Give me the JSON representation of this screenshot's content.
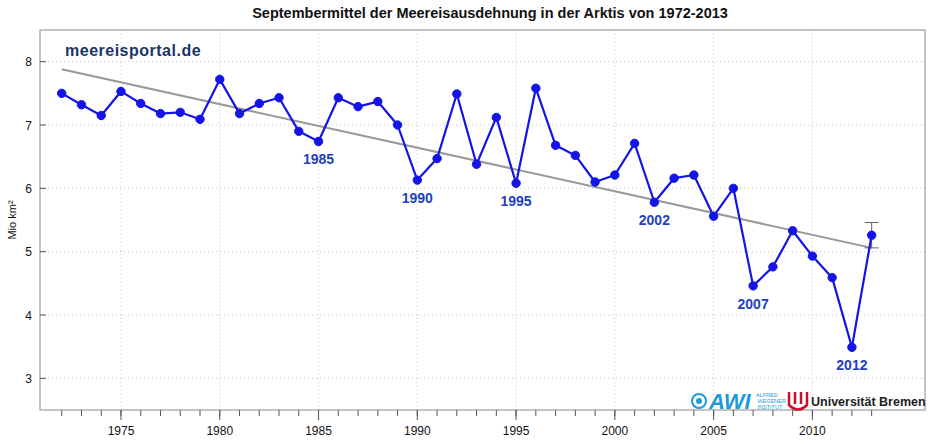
{
  "chart_data": {
    "type": "line",
    "title": "Septembermittel der Meereisausdehnung in der Arktis von 1972-2013",
    "y_label": "Mio km²",
    "x": [
      1972,
      1973,
      1974,
      1975,
      1976,
      1977,
      1978,
      1979,
      1980,
      1981,
      1982,
      1983,
      1984,
      1985,
      1986,
      1987,
      1988,
      1989,
      1990,
      1991,
      1992,
      1993,
      1994,
      1995,
      1996,
      1997,
      1998,
      1999,
      2000,
      2001,
      2002,
      2003,
      2004,
      2005,
      2006,
      2007,
      2008,
      2009,
      2010,
      2011,
      2012,
      2013
    ],
    "values": [
      7.5,
      7.32,
      7.15,
      7.53,
      7.34,
      7.18,
      7.2,
      7.09,
      7.72,
      7.18,
      7.34,
      7.43,
      6.9,
      6.74,
      7.43,
      7.29,
      7.37,
      7.0,
      6.13,
      6.47,
      7.49,
      6.38,
      7.12,
      6.08,
      7.58,
      6.68,
      6.52,
      6.1,
      6.21,
      6.71,
      5.78,
      6.16,
      6.21,
      5.56,
      6.0,
      4.46,
      4.76,
      5.33,
      4.93,
      4.59,
      3.49,
      5.26
    ],
    "errors": [
      null,
      null,
      null,
      null,
      null,
      null,
      null,
      null,
      null,
      null,
      null,
      null,
      null,
      null,
      null,
      null,
      null,
      null,
      null,
      null,
      null,
      null,
      null,
      null,
      null,
      null,
      null,
      null,
      null,
      null,
      null,
      null,
      null,
      null,
      null,
      null,
      null,
      null,
      null,
      null,
      null,
      0.2
    ],
    "color": "#1414e6",
    "marker": "circle",
    "trend_line": {
      "x": [
        1972,
        2013
      ],
      "values": [
        7.88,
        5.06
      ],
      "color": "#999999"
    },
    "annotations": [
      {
        "x": 1985,
        "text": "1985"
      },
      {
        "x": 1990,
        "text": "1990"
      },
      {
        "x": 1995,
        "text": "1995"
      },
      {
        "x": 2002,
        "text": "2002"
      },
      {
        "x": 2007,
        "text": "2007"
      },
      {
        "x": 2012,
        "text": "2012"
      }
    ],
    "watermark": "meereisportal.de",
    "logos": [
      "AWI",
      "ALFRED WEGENER INSTITUT",
      "Universität Bremen"
    ],
    "xlim": [
      1970.9,
      2015.7
    ],
    "ylim": [
      2.5,
      8.5
    ],
    "xticks": [
      1975,
      1980,
      1985,
      1990,
      1995,
      2000,
      2005,
      2010
    ],
    "yticks": [
      3,
      4,
      5,
      6,
      7,
      8
    ],
    "grid": true
  }
}
